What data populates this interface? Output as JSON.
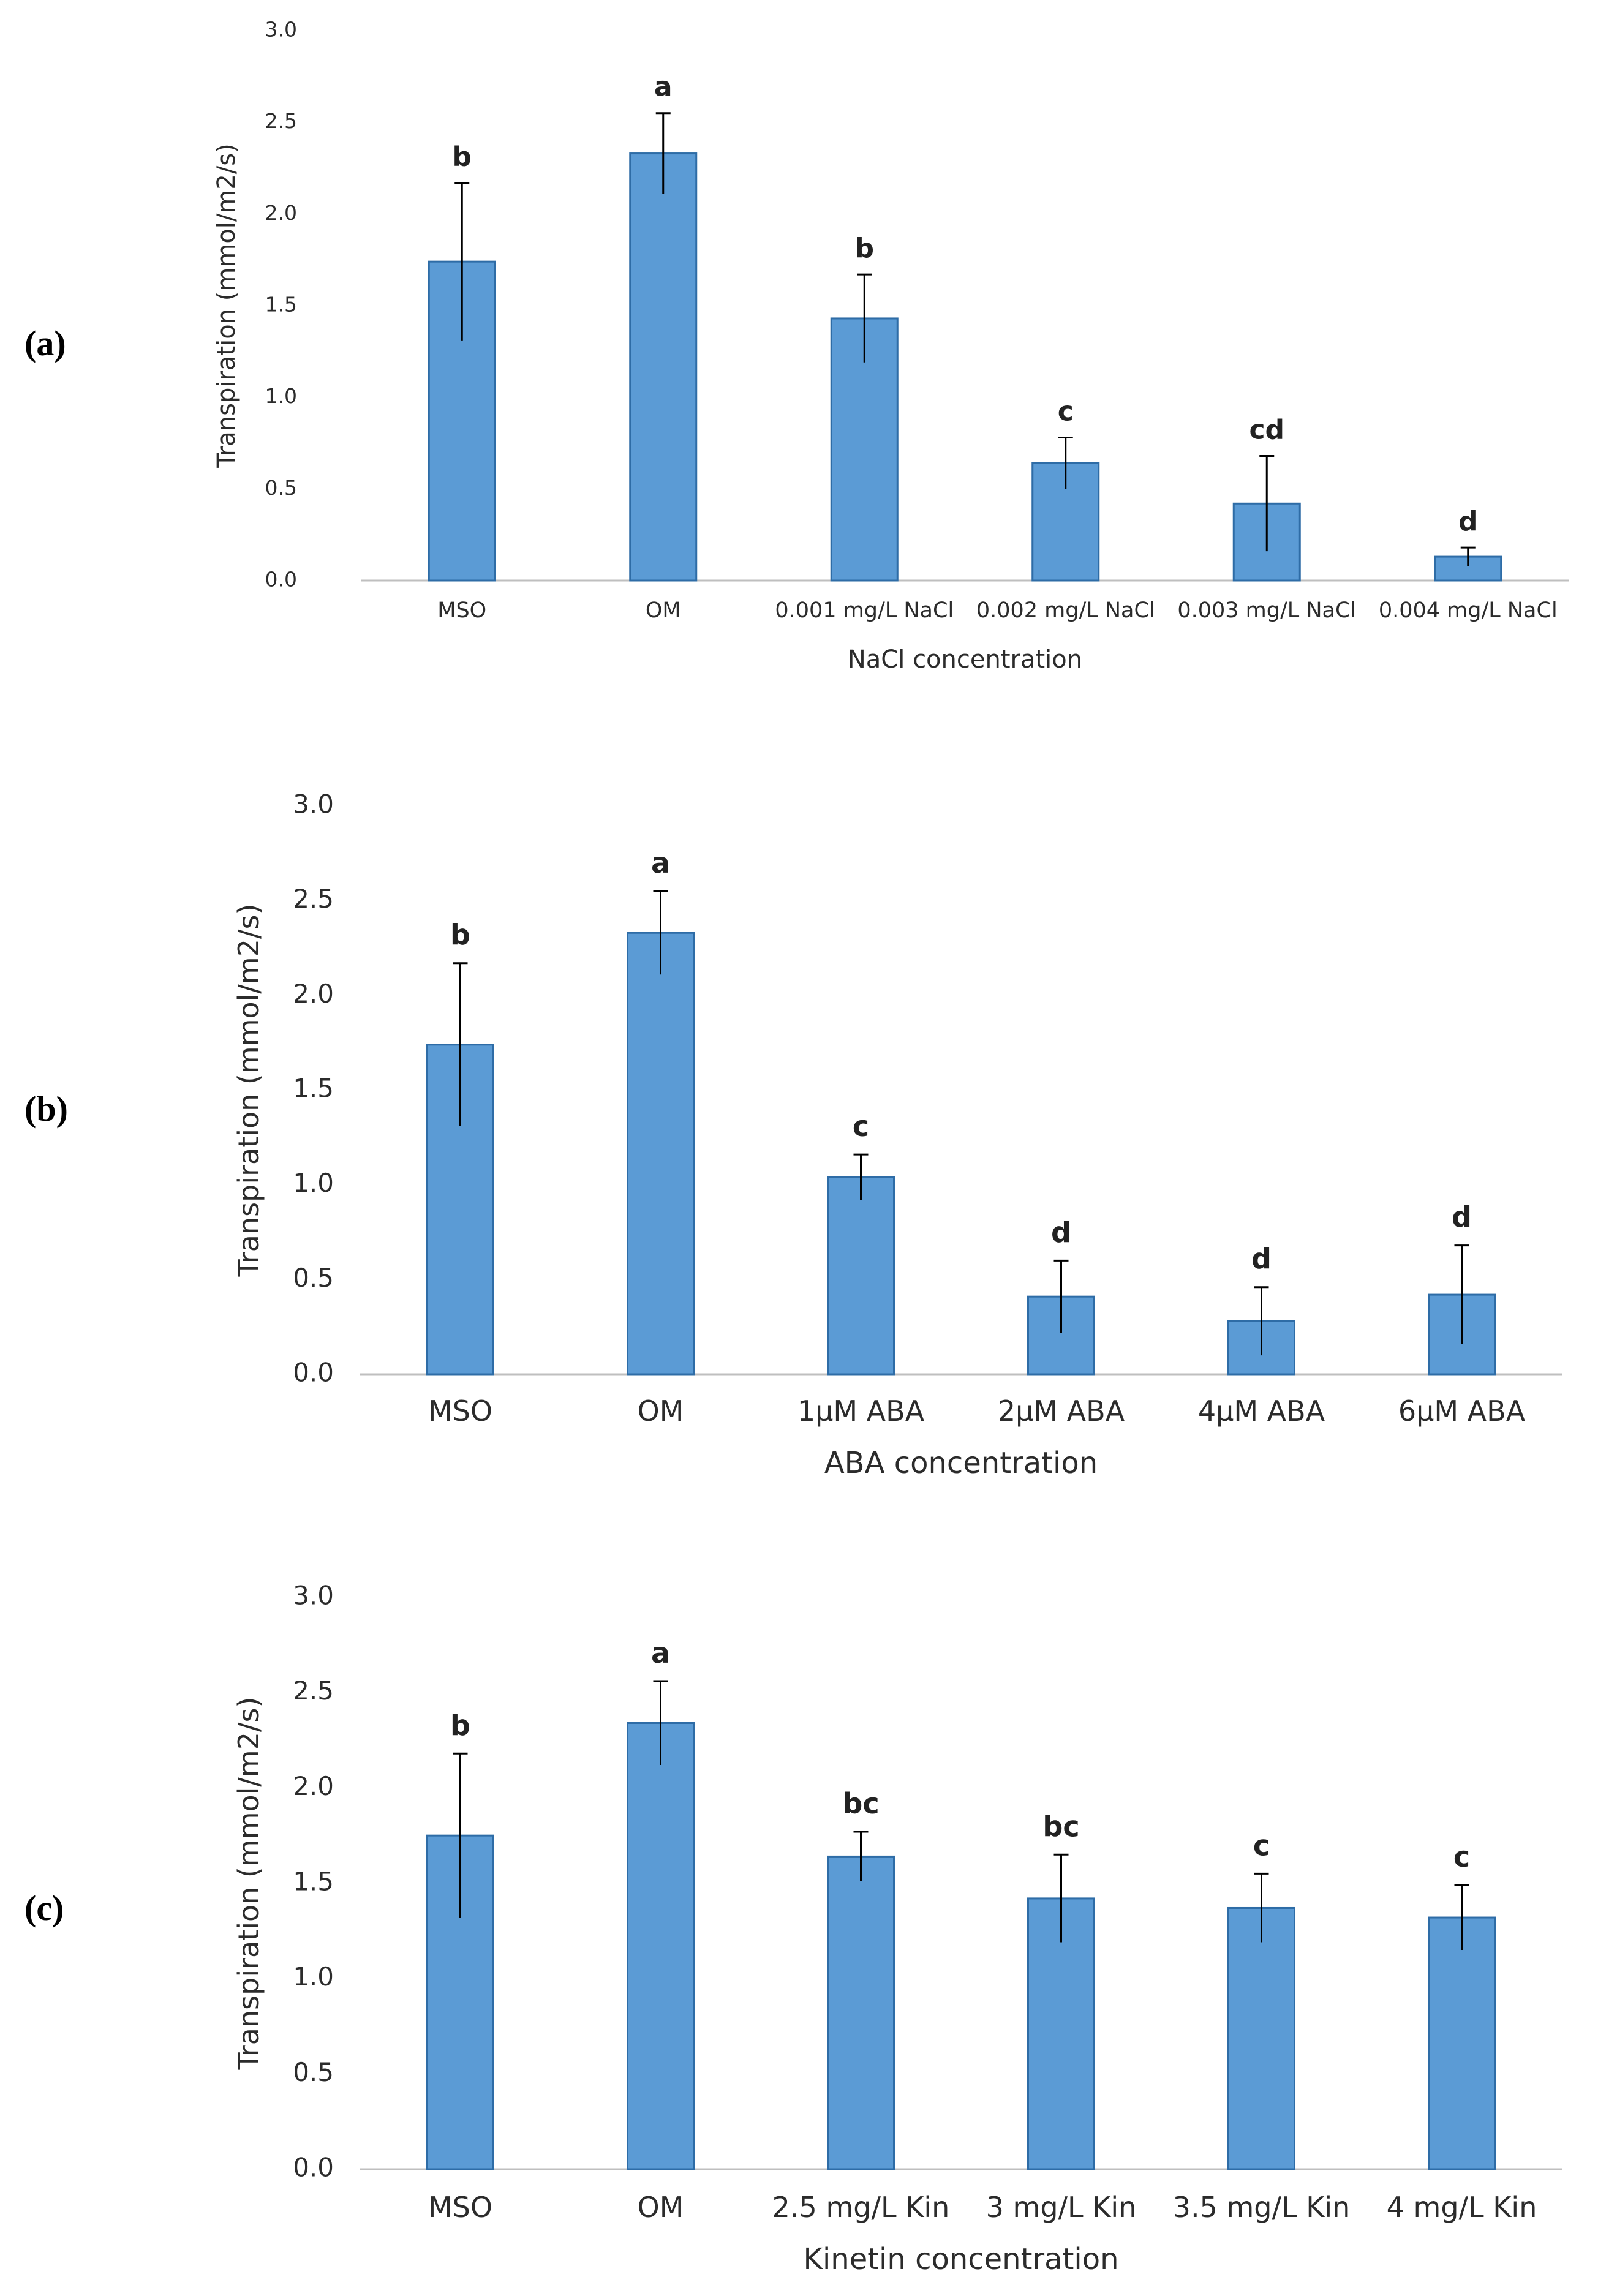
{
  "chart_data": [
    {
      "type": "bar",
      "panel_label": "(a)",
      "categories": [
        "MSO",
        "OM",
        "0.001 mg/L NaCl",
        "0.002 mg/L  NaCl",
        "0.003 mg/L  NaCl",
        "0.004 mg/L  NaCl"
      ],
      "values": [
        1.74,
        2.33,
        1.43,
        0.64,
        0.42,
        0.13
      ],
      "errors": [
        0.43,
        0.22,
        0.24,
        0.14,
        0.26,
        0.05
      ],
      "significance": [
        "b",
        "a",
        "b",
        "c",
        "cd",
        "d"
      ],
      "xlabel": "NaCl concentration",
      "ylabel": "Transpiration (mmol/m2/s)",
      "ylim": [
        0,
        3.0
      ],
      "yticks": [
        "0.0",
        "0.5",
        "1.0",
        "1.5",
        "2.0",
        "2.5",
        "3.0"
      ],
      "grid": false
    },
    {
      "type": "bar",
      "panel_label": "(b)",
      "categories": [
        "MSO",
        "OM",
        "1μM ABA",
        "2μM ABA",
        "4μM ABA",
        "6μM ABA"
      ],
      "values": [
        1.74,
        2.33,
        1.04,
        0.41,
        0.28,
        0.42
      ],
      "errors": [
        0.43,
        0.22,
        0.12,
        0.19,
        0.18,
        0.26
      ],
      "significance": [
        "b",
        "a",
        "c",
        "d",
        "d",
        "d"
      ],
      "xlabel": "ABA concentration",
      "ylabel": "Transpiration (mmol/m2/s)",
      "ylim": [
        0,
        3.0
      ],
      "yticks": [
        "0.0",
        "0.5",
        "1.0",
        "1.5",
        "2.0",
        "2.5",
        "3.0"
      ],
      "grid": false
    },
    {
      "type": "bar",
      "panel_label": "(c)",
      "categories": [
        "MSO",
        "OM",
        "2.5 mg/L Kin",
        "3 mg/L Kin",
        "3.5 mg/L Kin",
        "4 mg/L Kin"
      ],
      "values": [
        1.75,
        2.34,
        1.64,
        1.42,
        1.37,
        1.32
      ],
      "errors": [
        0.43,
        0.22,
        0.13,
        0.23,
        0.18,
        0.17
      ],
      "significance": [
        "b",
        "a",
        "bc",
        "bc",
        "c",
        "c"
      ],
      "xlabel": "Kinetin concentration",
      "ylabel": "Transpiration (mmol/m2/s)",
      "ylim": [
        0,
        3.0
      ],
      "yticks": [
        "0.0",
        "0.5",
        "1.0",
        "1.5",
        "2.0",
        "2.5",
        "3.0"
      ],
      "grid": false
    }
  ]
}
